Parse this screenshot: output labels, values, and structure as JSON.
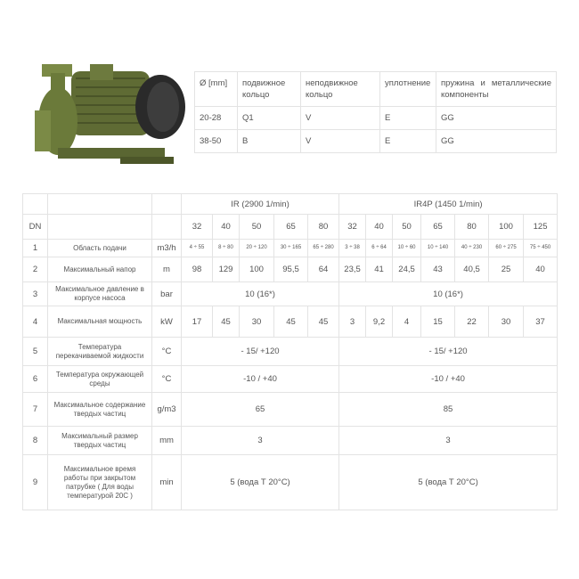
{
  "seals": {
    "header": [
      "Ø [mm]",
      "подвижное кольцо",
      "неподвижное кольцо",
      "уплотнение",
      "пружина и металлические компоненты"
    ],
    "rows": [
      [
        "20-28",
        "Q1",
        "V",
        "E",
        "GG"
      ],
      [
        "38-50",
        "B",
        "V",
        "E",
        "GG"
      ]
    ]
  },
  "spec": {
    "dn_label": "DN",
    "ir_label": "IR (2900 1/min)",
    "ir4p_label": "IR4P (1450 1/min)",
    "ir_sizes": [
      "32",
      "40",
      "50",
      "65",
      "80"
    ],
    "ir4p_sizes": [
      "32",
      "40",
      "50",
      "65",
      "80",
      "100",
      "125"
    ],
    "rows": [
      {
        "n": "1",
        "desc": "Область подачи",
        "unit": "m3/h",
        "ir": [
          "4 ÷ 55",
          "8 ÷ 80",
          "20 ÷ 120",
          "30 ÷ 165",
          "65 ÷ 280"
        ],
        "ir4p": [
          "3 ÷ 38",
          "6 ÷ 64",
          "10 ÷ 60",
          "10 ÷ 140",
          "40 ÷ 230",
          "60 ÷ 275",
          "75 ÷ 450"
        ]
      },
      {
        "n": "2",
        "desc": "Максимальный напор",
        "unit": "m",
        "ir": [
          "98",
          "129",
          "100",
          "95,5",
          "64"
        ],
        "ir4p": [
          "23,5",
          "41",
          "24,5",
          "43",
          "40,5",
          "25",
          "40"
        ]
      },
      {
        "n": "3",
        "desc": "Максимальное давление в корпусе насоса",
        "unit": "bar",
        "ir_all": "10 (16*)",
        "ir4p_all": "10 (16*)"
      },
      {
        "n": "4",
        "desc": "Максимальная мощность",
        "unit": "kW",
        "ir": [
          "17",
          "45",
          "30",
          "45",
          "45"
        ],
        "ir4p": [
          "3",
          "9,2",
          "4",
          "15",
          "22",
          "30",
          "37"
        ]
      },
      {
        "n": "5",
        "desc": "Температура перекачиваемой жидкости",
        "unit": "°C",
        "ir_all": "- 15/ +120",
        "ir4p_all": "- 15/ +120"
      },
      {
        "n": "6",
        "desc": "Температура окружающей среды",
        "unit": "°C",
        "ir_all": "-10 / +40",
        "ir4p_all": "-10 / +40"
      },
      {
        "n": "7",
        "desc": "Максимальное содержание твердых частиц",
        "unit": "g/m3",
        "ir_all": "65",
        "ir4p_all": "85"
      },
      {
        "n": "8",
        "desc": "Максимальный размер твердых частиц",
        "unit": "mm",
        "ir_all": "3",
        "ir4p_all": "3"
      },
      {
        "n": "9",
        "desc": "Максимальное время работы при закрытом патрубке ( Для воды температурой 20С )",
        "unit": "min",
        "ir_all": "5 (вода Т 20°C)",
        "ir4p_all": "5 (вода Т 20°C)"
      }
    ]
  }
}
